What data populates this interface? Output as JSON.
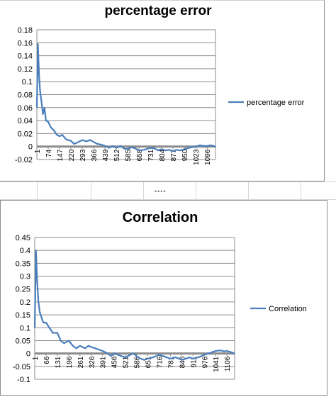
{
  "chart_data": [
    {
      "type": "line",
      "title": "percentage error",
      "xlabel": "",
      "ylabel": "",
      "ylim": [
        -0.02,
        0.18
      ],
      "yticks": [
        "0.18",
        "0.16",
        "0.14",
        "0.12",
        "0.1",
        "0.08",
        "0.06",
        "0.04",
        "0.02",
        "0",
        "-0.02"
      ],
      "xticks": [
        "1",
        "74",
        "147",
        "220",
        "293",
        "366",
        "439",
        "512",
        "585",
        "658",
        "731",
        "804",
        "877",
        "950",
        "1023",
        "1096"
      ],
      "x_max": 1150,
      "legend_position": "right",
      "grid": true,
      "series": [
        {
          "name": "percentage error",
          "color": "#4a7ebb",
          "x": [
            1,
            8,
            15,
            22,
            30,
            40,
            50,
            60,
            74,
            90,
            110,
            130,
            147,
            165,
            185,
            200,
            220,
            240,
            260,
            293,
            320,
            345,
            366,
            390,
            415,
            439,
            465,
            490,
            512,
            540,
            560,
            585,
            610,
            635,
            658,
            690,
            731,
            760,
            780,
            804,
            830,
            850,
            877,
            900,
            920,
            950,
            980,
            1000,
            1023,
            1050,
            1070,
            1096,
            1120,
            1150
          ],
          "values": [
            0.06,
            0.158,
            0.11,
            0.085,
            0.07,
            0.05,
            0.06,
            0.04,
            0.038,
            0.03,
            0.025,
            0.018,
            0.016,
            0.018,
            0.012,
            0.01,
            0.009,
            0.004,
            0.006,
            0.01,
            0.008,
            0.01,
            0.007,
            0.004,
            0.003,
            0.001,
            -0.002,
            0.001,
            -0.002,
            0.001,
            -0.003,
            -0.004,
            -0.001,
            -0.003,
            -0.006,
            -0.005,
            -0.002,
            -0.003,
            -0.006,
            -0.004,
            -0.006,
            -0.005,
            -0.007,
            -0.005,
            -0.006,
            -0.004,
            -0.002,
            -0.001,
            0.0,
            0.002,
            0.001,
            0.001,
            0.002,
            0.0
          ]
        }
      ]
    },
    {
      "type": "line",
      "title": "Correlation",
      "xlabel": "",
      "ylabel": "",
      "ylim": [
        -0.1,
        0.45
      ],
      "yticks": [
        "0.45",
        "0.4",
        "0.35",
        "0.3",
        "0.25",
        "0.2",
        "0.15",
        "0.1",
        "0.05",
        "0",
        "-0.05",
        "-0.1"
      ],
      "xticks": [
        "1",
        "66",
        "131",
        "196",
        "261",
        "326",
        "391",
        "456",
        "521",
        "586",
        "651",
        "716",
        "781",
        "846",
        "911",
        "976",
        "1041",
        "1106"
      ],
      "x_max": 1150,
      "legend_position": "right",
      "grid": true,
      "series": [
        {
          "name": "Correlation",
          "color": "#4a7ebb",
          "x": [
            1,
            8,
            15,
            22,
            30,
            40,
            50,
            66,
            85,
            105,
            131,
            150,
            170,
            196,
            220,
            240,
            261,
            290,
            310,
            326,
            350,
            370,
            391,
            420,
            440,
            456,
            480,
            500,
            521,
            550,
            570,
            586,
            610,
            630,
            651,
            680,
            700,
            716,
            740,
            760,
            781,
            810,
            830,
            846,
            870,
            890,
            911,
            940,
            960,
            976,
            1000,
            1020,
            1041,
            1070,
            1090,
            1106,
            1130,
            1150
          ],
          "values": [
            0.1,
            0.4,
            0.28,
            0.2,
            0.16,
            0.14,
            0.12,
            0.12,
            0.1,
            0.08,
            0.08,
            0.05,
            0.04,
            0.05,
            0.03,
            0.02,
            0.03,
            0.02,
            0.03,
            0.025,
            0.02,
            0.015,
            0.01,
            0.0,
            -0.01,
            0.0,
            -0.005,
            -0.01,
            -0.015,
            -0.005,
            0.0,
            -0.01,
            -0.02,
            -0.025,
            -0.02,
            -0.015,
            -0.01,
            -0.005,
            -0.01,
            -0.015,
            -0.02,
            -0.015,
            -0.02,
            -0.025,
            -0.02,
            -0.015,
            -0.02,
            -0.015,
            -0.01,
            -0.005,
            0.0,
            0.005,
            0.01,
            0.012,
            0.008,
            0.01,
            0.005,
            0.0
          ]
        }
      ]
    }
  ]
}
